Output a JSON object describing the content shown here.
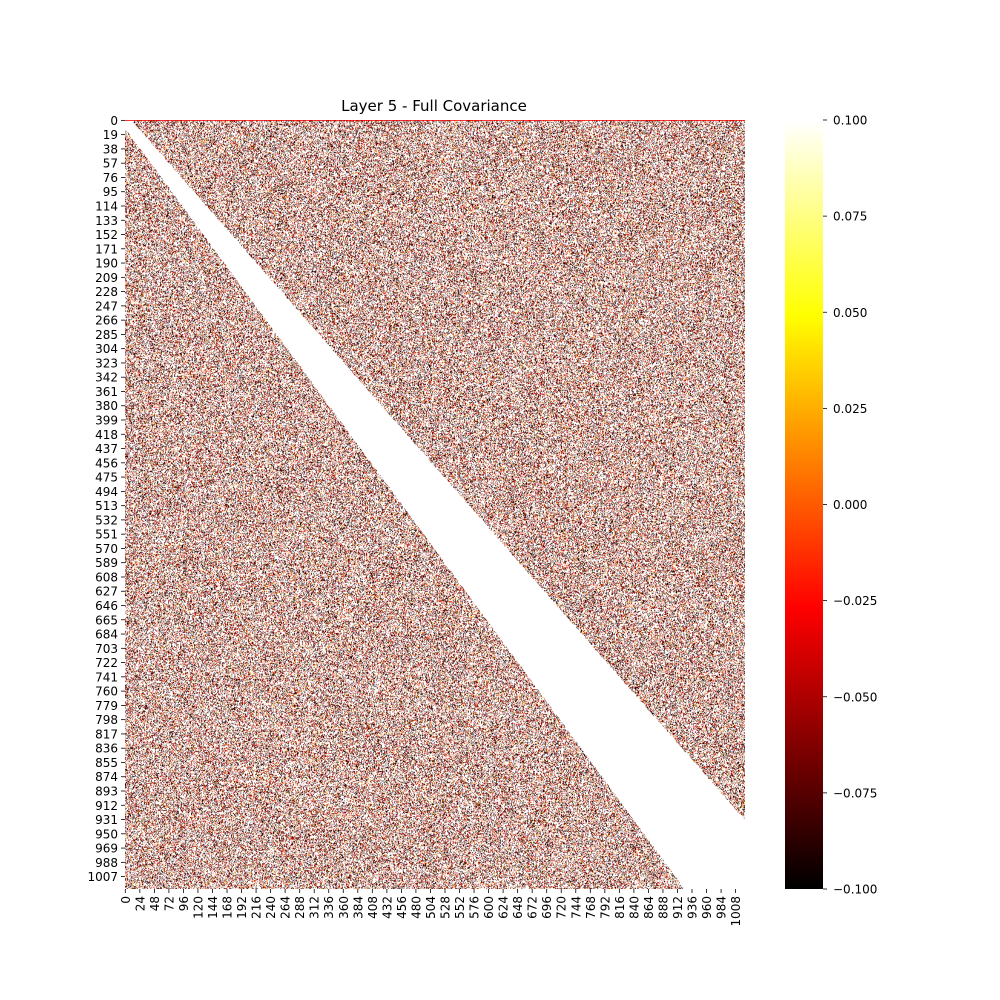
{
  "chart_data": {
    "type": "heatmap",
    "title": "Layer 5 - Full Covariance",
    "xlabel": "",
    "ylabel": "",
    "matrix_size": 1024,
    "cell_size_estimate": 4,
    "y_tick_labels": [
      "0",
      "19",
      "38",
      "57",
      "76",
      "95",
      "114",
      "133",
      "152",
      "171",
      "190",
      "209",
      "228",
      "247",
      "266",
      "285",
      "304",
      "323",
      "342",
      "361",
      "380",
      "399",
      "418",
      "437",
      "456",
      "475",
      "494",
      "513",
      "532",
      "551",
      "570",
      "589",
      "608",
      "627",
      "646",
      "665",
      "684",
      "703",
      "722",
      "741",
      "760",
      "779",
      "798",
      "817",
      "836",
      "855",
      "874",
      "893",
      "912",
      "931",
      "950",
      "969",
      "988",
      "1007"
    ],
    "x_tick_labels": [
      "0",
      "24",
      "48",
      "72",
      "96",
      "120",
      "144",
      "168",
      "192",
      "216",
      "240",
      "264",
      "288",
      "312",
      "336",
      "360",
      "384",
      "408",
      "432",
      "456",
      "480",
      "504",
      "528",
      "552",
      "576",
      "600",
      "624",
      "648",
      "672",
      "696",
      "720",
      "744",
      "768",
      "792",
      "816",
      "840",
      "864",
      "888",
      "912",
      "936",
      "960",
      "984",
      "1008"
    ],
    "y_tick_step": 19,
    "x_tick_step": 24,
    "diagonal_band": {
      "description": "white band of high positive values along the main diagonal",
      "width_at_start": 20,
      "width_at_end": 200
    },
    "first_row_value": -0.03,
    "dominant_offdiagonal_values": [
      "values above 0.1 (white) and scattered values near -0.1 (black) and around 0.0 (orange)"
    ],
    "colorbar": {
      "colormap": "hot",
      "vmin": -0.1,
      "vmax": 0.1,
      "tick_values": [
        -0.1,
        -0.075,
        -0.05,
        -0.025,
        0.0,
        0.025,
        0.05,
        0.075,
        0.1
      ],
      "tick_labels": [
        "−0.100",
        "−0.075",
        "−0.050",
        "−0.025",
        "0.000",
        "0.025",
        "0.050",
        "0.075",
        "0.100"
      ]
    },
    "grid": false,
    "legend": "colorbar-right"
  }
}
